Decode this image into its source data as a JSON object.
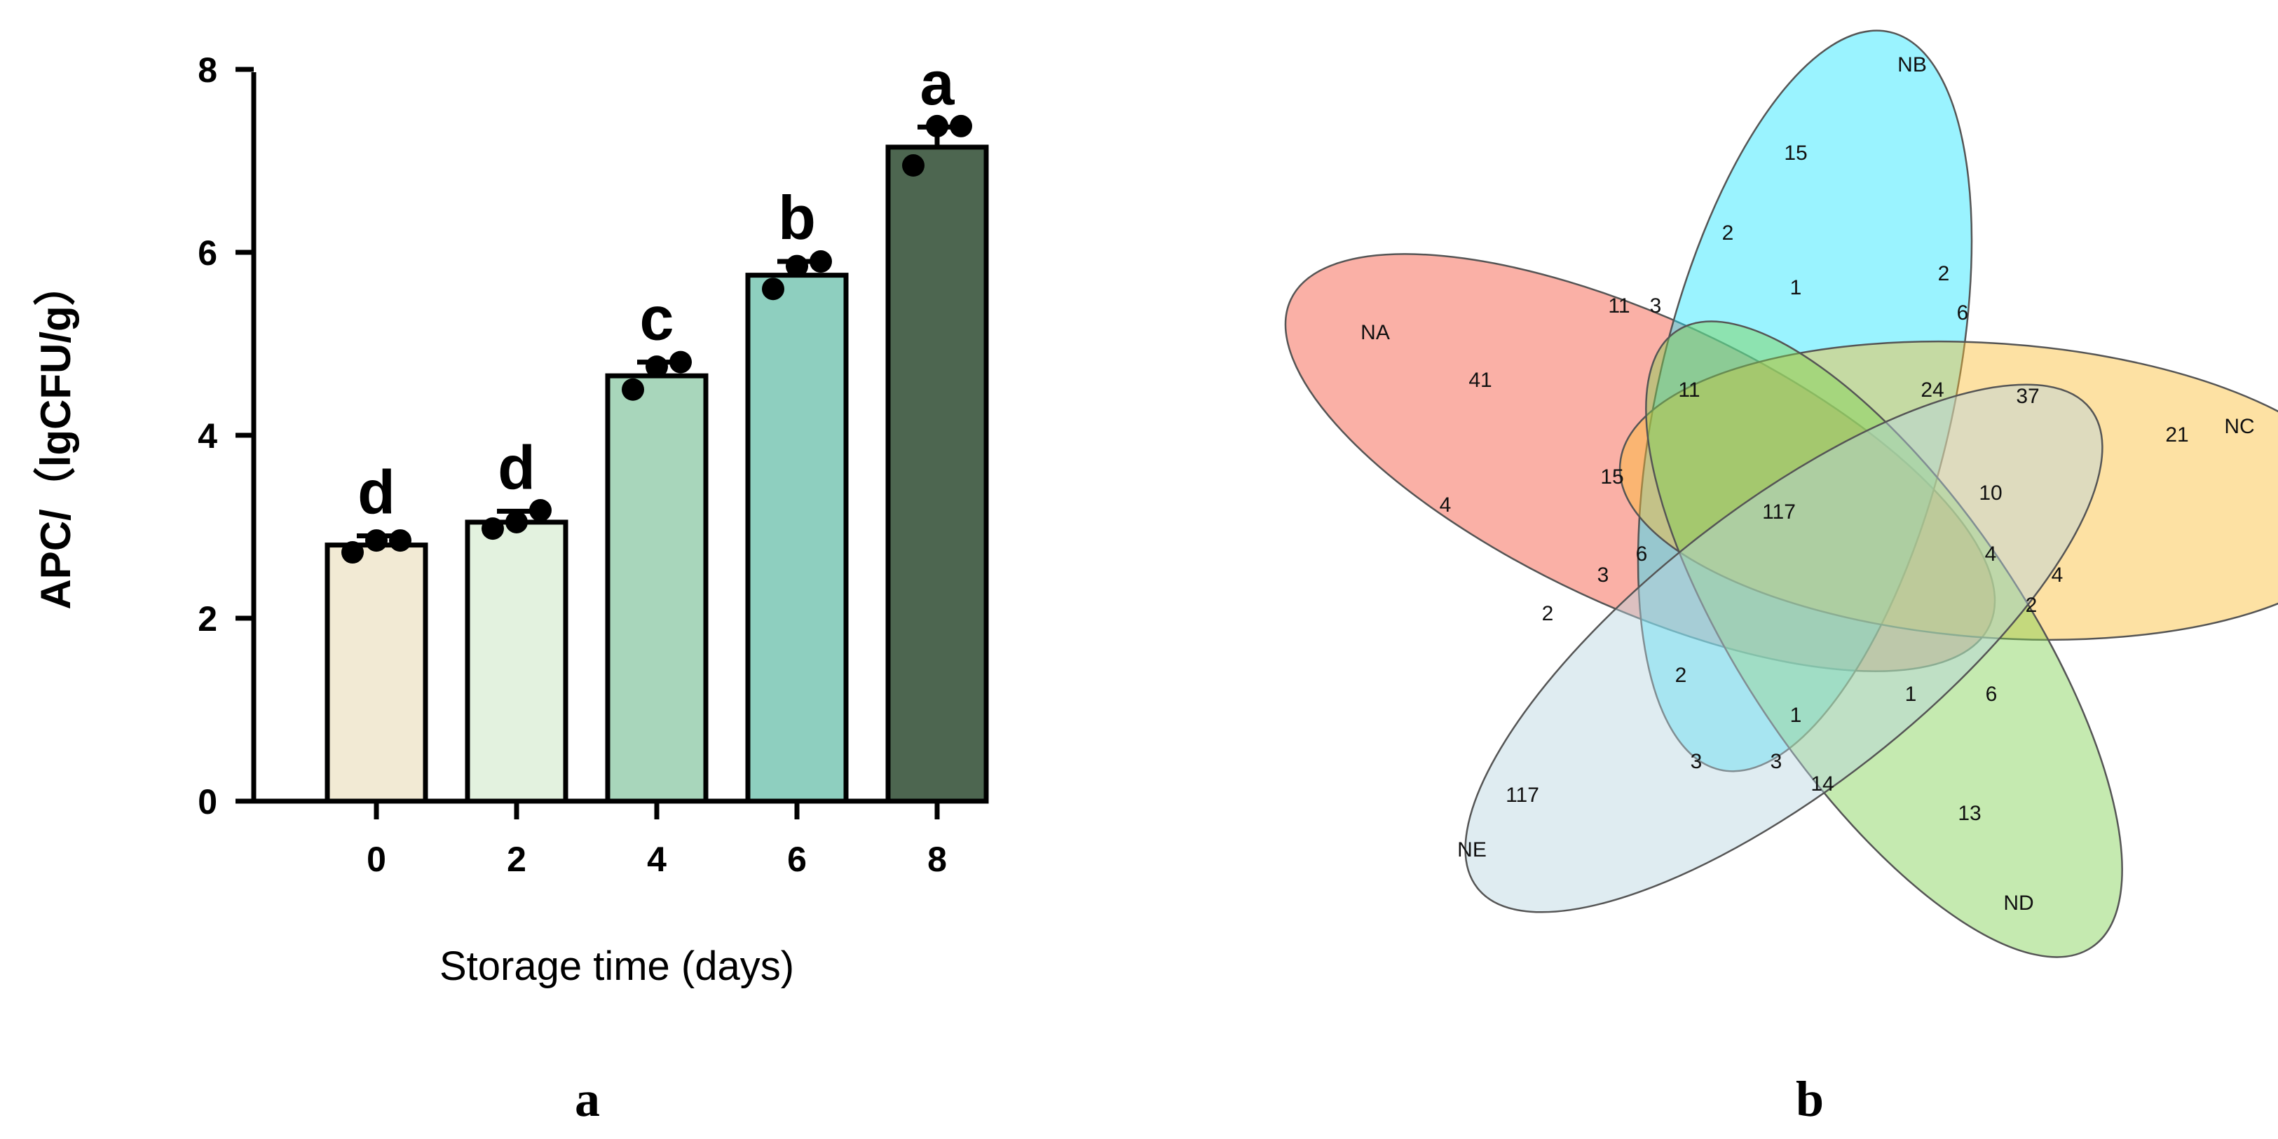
{
  "chart_data": [
    {
      "type": "bar",
      "panel_label": "a",
      "categories": [
        "0",
        "2",
        "4",
        "6",
        "8"
      ],
      "values": [
        2.8,
        3.05,
        4.65,
        5.75,
        7.15
      ],
      "errors": [
        0.1,
        0.12,
        0.15,
        0.15,
        0.22
      ],
      "points": [
        [
          2.72,
          2.85,
          2.85
        ],
        [
          2.98,
          3.18,
          3.05
        ],
        [
          4.5,
          4.8,
          4.75
        ],
        [
          5.6,
          5.9,
          5.85
        ],
        [
          6.95,
          7.38,
          7.38
        ]
      ],
      "letters": [
        "d",
        "d",
        "c",
        "b",
        "a"
      ],
      "colors": [
        "#f2ead4",
        "#e3f2df",
        "#a8d6bb",
        "#8ecfbf",
        "#4d6650"
      ],
      "xlabel": "Storage time (days)",
      "ylabel": "APC/（lgCFU/g）",
      "yticks": [
        "0",
        "2",
        "4",
        "6",
        "8"
      ],
      "ylim": [
        0,
        8
      ],
      "grid": false
    },
    {
      "type": "venn",
      "panel_label": "b",
      "sets": [
        {
          "name": "NA",
          "color": "#f4503a"
        },
        {
          "name": "NB",
          "color": "#1fe4ff"
        },
        {
          "name": "NC",
          "color": "#fbbd32"
        },
        {
          "name": "ND",
          "color": "#7ed14f"
        },
        {
          "name": "NE",
          "color": "#b8d4e0"
        }
      ],
      "region_counts": [
        "15",
        "2",
        "2",
        "1",
        "11",
        "3",
        "41",
        "11",
        "24",
        "6",
        "37",
        "21",
        "15",
        "4",
        "10",
        "117",
        "3",
        "6",
        "4",
        "4",
        "2",
        "2",
        "2",
        "1",
        "1",
        "6",
        "117",
        "3",
        "3",
        "14",
        "13"
      ]
    }
  ]
}
